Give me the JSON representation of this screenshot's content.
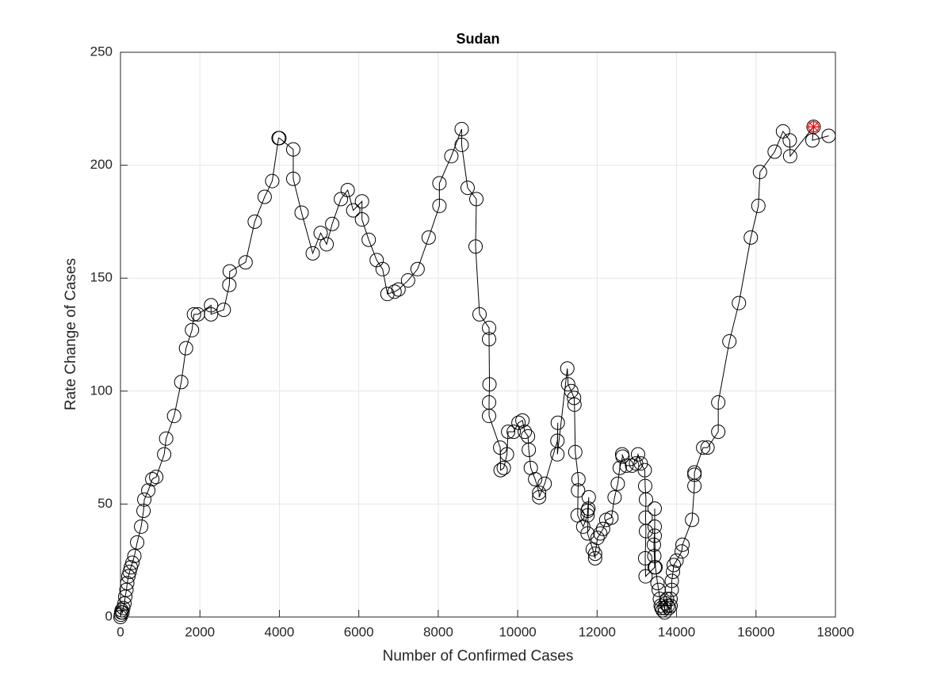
{
  "chart_data": {
    "type": "line",
    "title": "Sudan",
    "xlabel": "Number of Confirmed Cases",
    "ylabel": "Rate Change of Cases",
    "x": [
      0,
      10,
      20,
      30,
      50,
      70,
      100,
      120,
      150,
      170,
      200,
      230,
      260,
      300,
      350,
      420,
      520,
      580,
      600,
      700,
      800,
      900,
      1100,
      1150,
      1350,
      1530,
      1650,
      1800,
      1850,
      1950,
      2280,
      2280,
      2600,
      2740,
      2750,
      3150,
      3380,
      3630,
      3820,
      3980,
      4000,
      4350,
      4350,
      4560,
      4840,
      5040,
      5190,
      5330,
      5550,
      5720,
      5860,
      6080,
      6080,
      6250,
      6450,
      6600,
      6720,
      6900,
      7000,
      7240,
      7480,
      7760,
      8030,
      8030,
      8330,
      8590,
      8590,
      8740,
      8960,
      8940,
      9040,
      9280,
      9280,
      9290,
      9280,
      9280,
      9560,
      9570,
      9650,
      9730,
      9760,
      9900,
      10020,
      10120,
      10180,
      10260,
      10280,
      10330,
      10440,
      10540,
      10540,
      10680,
      11000,
      11010,
      11000,
      11250,
      11270,
      11350,
      11420,
      11430,
      11450,
      11530,
      11520,
      11510,
      11650,
      11760,
      11760,
      11790,
      11780,
      11760,
      11890,
      11950,
      11950,
      12010,
      12080,
      12150,
      12230,
      12360,
      12440,
      12520,
      12570,
      12640,
      12630,
      12740,
      12880,
      12980,
      13030,
      13100,
      13200,
      13210,
      13230,
      13220,
      13230,
      13210,
      13220,
      13450,
      13440,
      13430,
      13450,
      13450,
      13450,
      13470,
      13520,
      13550,
      13580,
      13600,
      13620,
      13650,
      13700,
      13700,
      13720,
      13760,
      13780,
      13810,
      13850,
      13850,
      13880,
      13880,
      13910,
      13930,
      14000,
      14130,
      14150,
      14390,
      14450,
      14450,
      14450,
      14670,
      14780,
      15050,
      15050,
      15330,
      15570,
      15870,
      16060,
      16100,
      16470,
      16680,
      16850,
      16860,
      17450,
      17420,
      17830
    ],
    "series": [
      {
        "color": "#000000",
        "values": [
          0,
          1,
          2,
          3,
          2,
          4,
          6,
          9,
          12,
          15,
          18,
          20,
          22,
          24,
          27,
          33,
          40,
          47,
          52,
          56,
          61,
          62,
          72,
          79,
          89,
          104,
          119,
          127,
          134,
          134,
          138,
          134,
          136,
          147,
          153,
          157,
          175,
          186,
          193,
          212,
          212,
          207,
          194,
          179,
          161,
          170,
          165,
          174,
          185,
          189,
          180,
          184,
          176,
          167,
          158,
          154,
          143,
          144,
          145,
          149,
          154,
          168,
          182,
          192,
          204,
          216,
          209,
          190,
          185,
          164,
          134,
          128,
          123,
          103,
          95,
          89,
          75,
          65,
          66,
          72,
          82,
          82,
          86,
          87,
          82,
          80,
          74,
          66,
          61,
          55,
          53,
          59,
          78,
          86,
          72,
          110,
          103,
          100,
          97,
          94,
          73,
          61,
          56,
          45,
          40,
          45,
          47,
          53,
          48,
          37,
          30,
          26,
          28,
          35,
          37,
          39,
          43,
          44,
          53,
          59,
          66,
          71,
          72,
          67,
          67,
          68,
          72,
          68,
          65,
          58,
          52,
          44,
          38,
          26,
          18,
          22,
          27,
          32,
          40,
          48,
          36,
          22,
          15,
          12,
          8,
          5,
          4,
          3,
          2,
          4,
          6,
          8,
          5,
          4,
          5,
          8,
          12,
          16,
          20,
          23,
          25,
          29,
          32,
          43,
          58,
          63,
          64,
          75,
          75,
          82,
          95,
          122,
          139,
          168,
          182,
          197,
          206,
          215,
          211,
          204,
          217,
          211,
          213
        ]
      }
    ],
    "marker": {
      "x": 17450,
      "y": 217,
      "color": "#ff0000"
    },
    "xlim": [
      0,
      18000
    ],
    "xticks": [
      0,
      2000,
      4000,
      6000,
      8000,
      10000,
      12000,
      14000,
      16000,
      18000
    ],
    "ylim": [
      0,
      250
    ],
    "yticks": [
      0,
      50,
      100,
      150,
      200,
      250
    ],
    "grid": true
  }
}
